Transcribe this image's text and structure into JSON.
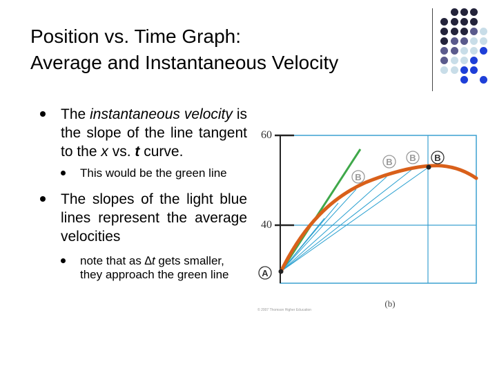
{
  "slide": {
    "title_line1": "Position vs. Time Graph:",
    "title_line2": "Average and Instantaneous Velocity"
  },
  "bullets": {
    "b1_part1": "The ",
    "b1_instantaneous": "instantaneous",
    "b1_velocity": "velocity",
    "b1_part2": " is the slope of the line tangent to the ",
    "b1_x": "x",
    "b1_part3": " vs. ",
    "b1_t": "t",
    "b1_part4": " curve.",
    "b1_sub": "This would be the green line",
    "b2": "The slopes of the light blue lines represent the average velocities",
    "b2_sub_part1": "note that as ",
    "b2_sub_delta": "∆t",
    "b2_sub_part2": " gets smaller, they approach the green line"
  },
  "graph": {
    "y_tick_60": "60",
    "y_tick_40": "40",
    "label_A": "A",
    "label_B": "B",
    "panel_label": "(b)",
    "copyright": "© 2007 Thomson Higher Education",
    "colors": {
      "curve": "#d9601a",
      "tangent": "#3fa84a",
      "secant": "#2aa0d0",
      "grid": "#3aa0d0"
    }
  },
  "decor": {
    "colors": {
      "dark": "#23233a",
      "slate": "#5a5a8c",
      "light": "#c8dde8",
      "blue": "#1e3fd8"
    }
  }
}
